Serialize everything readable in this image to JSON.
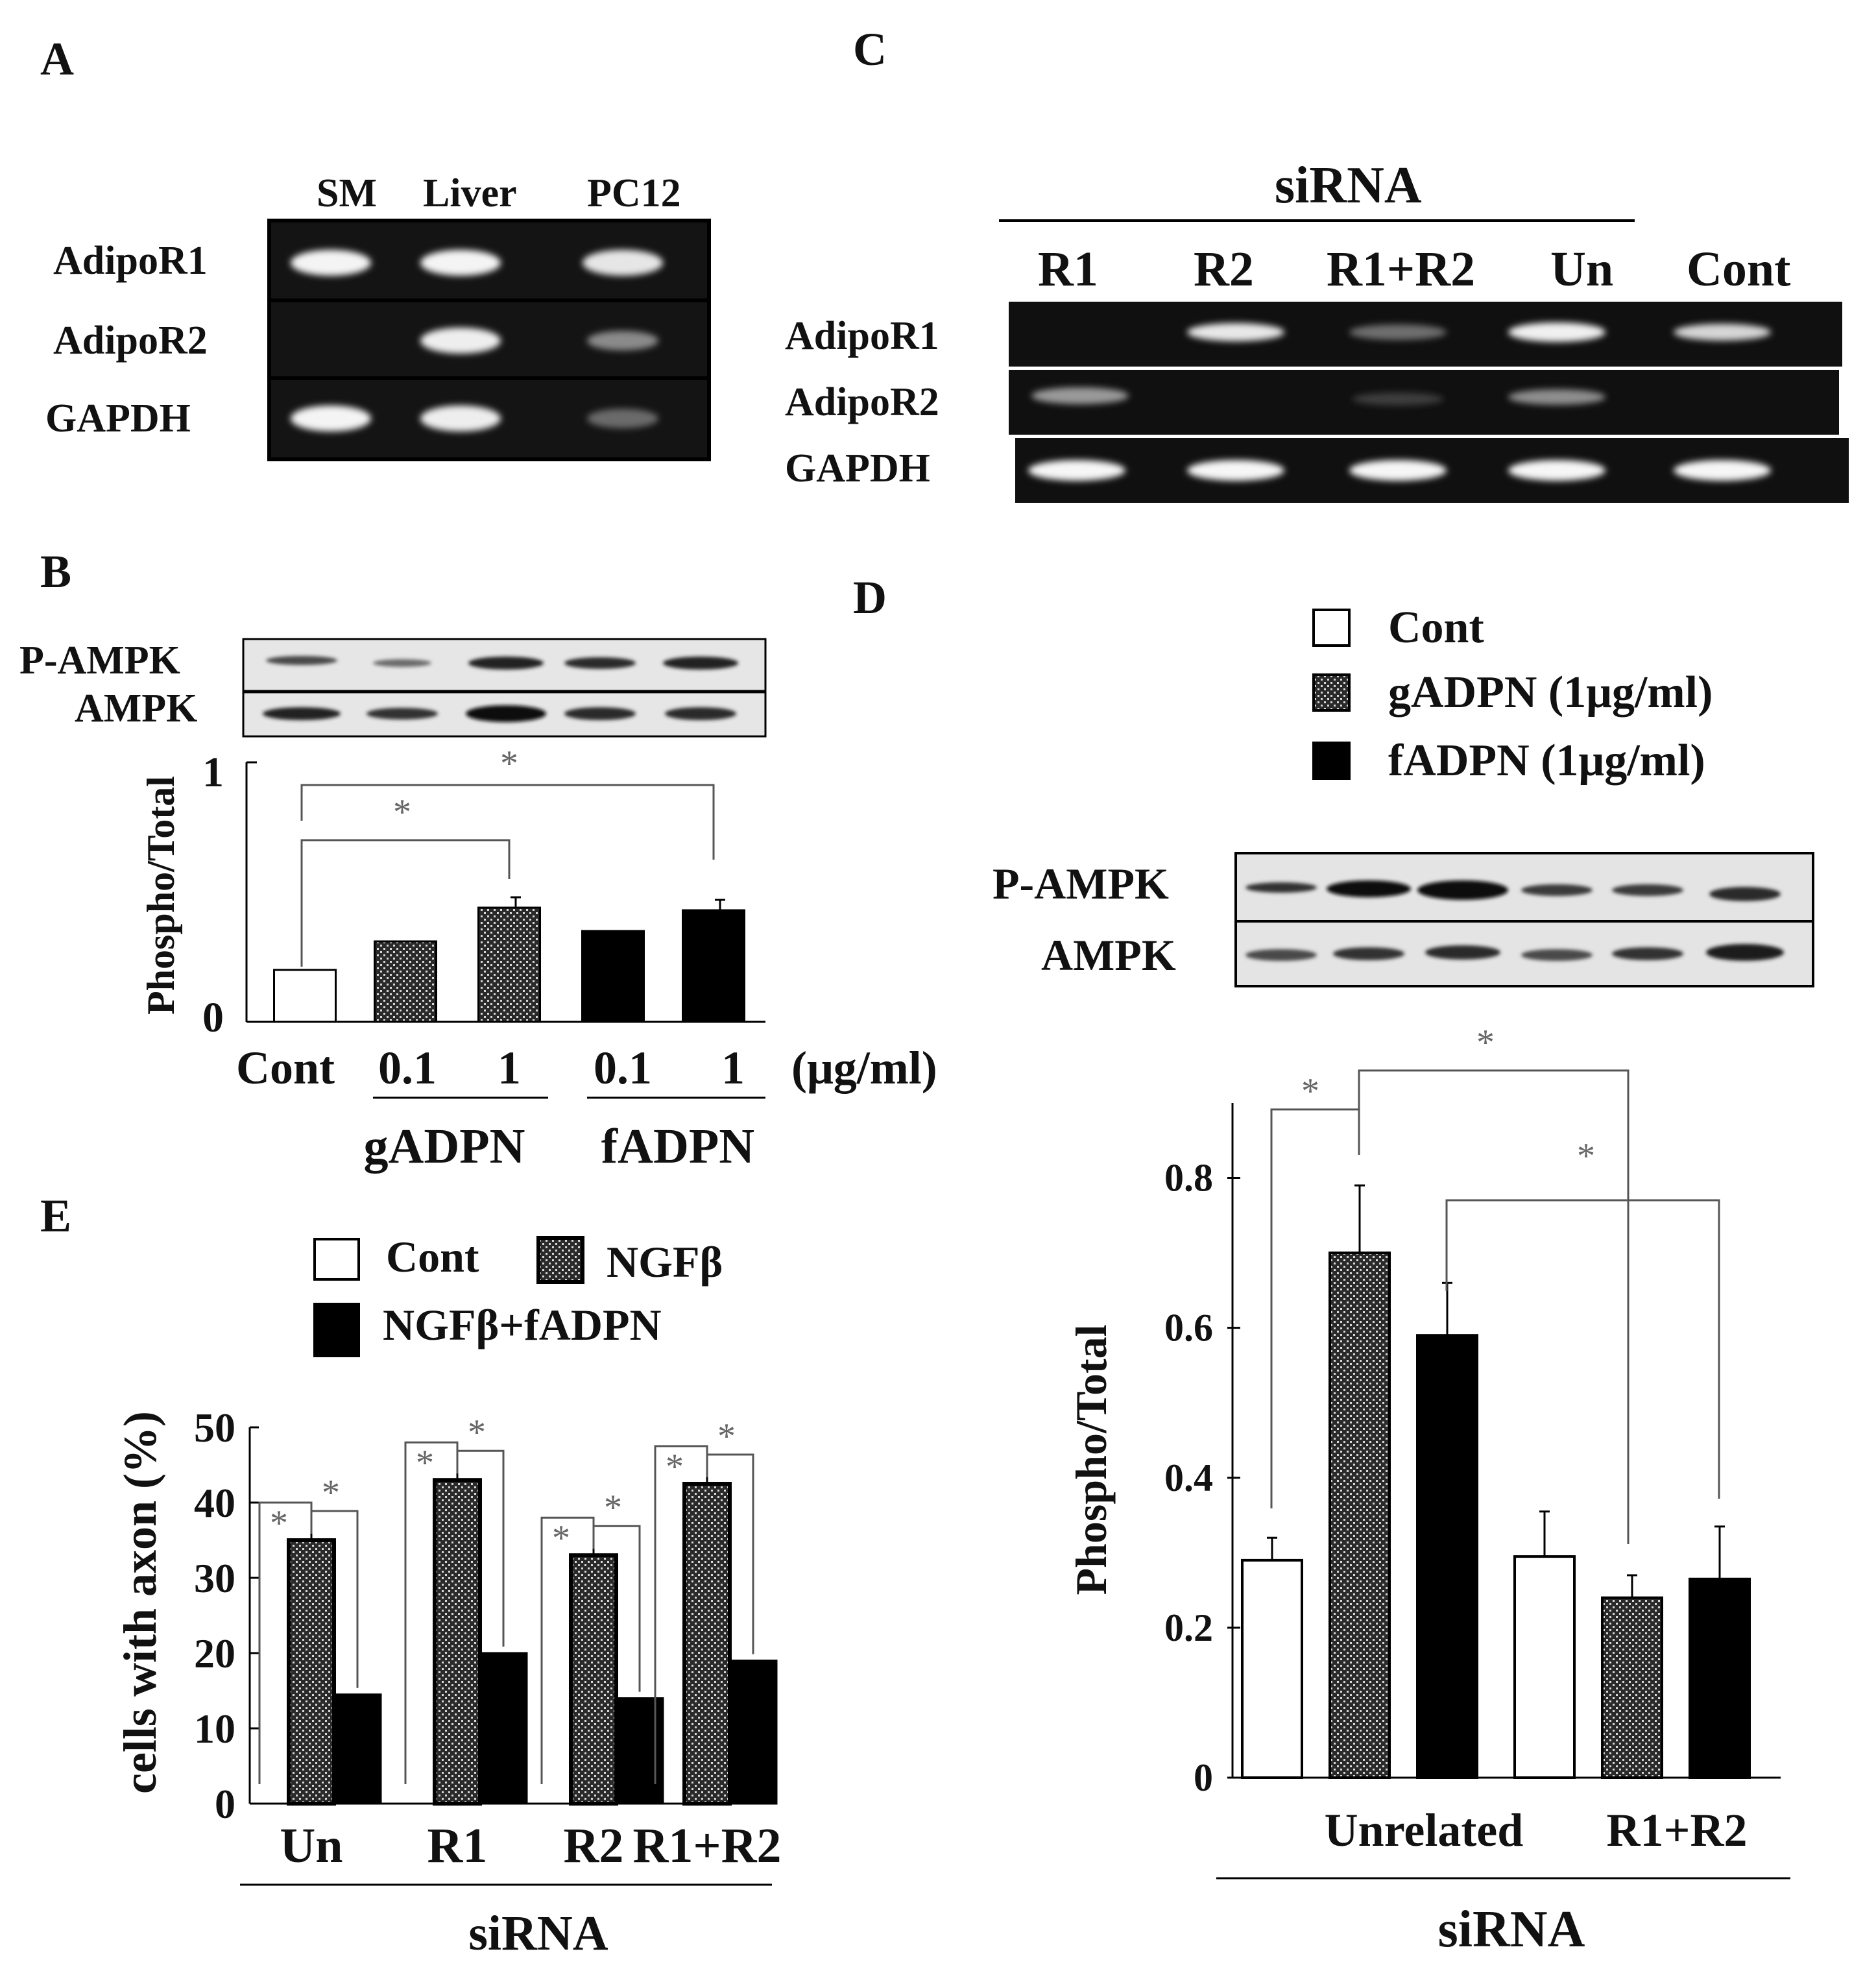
{
  "panels": {
    "A": {
      "letter": "A",
      "lanes": [
        "SM",
        "Liver",
        "PC12"
      ],
      "rows": [
        "AdipoR1",
        "AdipoR2",
        "GAPDH"
      ]
    },
    "B": {
      "letter": "B",
      "blot_rows": [
        "P-AMPK",
        "AMPK"
      ],
      "ylabel": "Phospho/Total",
      "yticks": [
        "0",
        "1"
      ],
      "categories": [
        "Cont",
        "0.1",
        "1",
        "0.1",
        "1"
      ],
      "unit": "(μg/ml)",
      "groups": [
        "gADPN",
        "fADPN"
      ]
    },
    "C": {
      "letter": "C",
      "header": "siRNA",
      "lanes": [
        "R1",
        "R2",
        "R1+R2",
        "Un",
        "Cont"
      ],
      "rows": [
        "AdipoR1",
        "AdipoR2",
        "GAPDH"
      ]
    },
    "D": {
      "letter": "D",
      "legend": [
        "Cont",
        "gADPN (1μg/ml)",
        "fADPN (1μg/ml)"
      ],
      "blot_rows": [
        "P-AMPK",
        "AMPK"
      ],
      "ylabel": "Phospho/Total",
      "yticks": [
        "0",
        "0.2",
        "0.4",
        "0.6",
        "0.8"
      ],
      "groups": [
        "Unrelated",
        "R1+R2"
      ],
      "xlabel": "siRNA"
    },
    "E": {
      "letter": "E",
      "legend": [
        "Cont",
        "NGFβ",
        "NGFβ+fADPN"
      ],
      "ylabel": "cells with axon (%)",
      "yticks": [
        "0",
        "10",
        "20",
        "30",
        "40",
        "50"
      ],
      "groups": [
        "Un",
        "R1",
        "R2",
        "R1+R2"
      ],
      "xlabel": "siRNA"
    }
  },
  "significance_mark": "*",
  "chart_data": [
    {
      "panel": "B",
      "type": "bar",
      "categories": [
        "Cont",
        "gADPN 0.1",
        "gADPN 1",
        "fADPN 0.1",
        "fADPN 1"
      ],
      "values": [
        0.2,
        0.31,
        0.44,
        0.35,
        0.43
      ],
      "errors": [
        0,
        0,
        0.04,
        0,
        0.04
      ],
      "fill": [
        "white",
        "hatched",
        "hatched",
        "black",
        "black"
      ],
      "ylabel": "Phospho/Total",
      "ylim": [
        0,
        1
      ]
    },
    {
      "panel": "D",
      "type": "bar",
      "categories": [
        "Unrelated",
        "R1+R2"
      ],
      "series": [
        {
          "name": "Cont",
          "values": [
            0.29,
            0.295
          ],
          "errors": [
            0.03,
            0.06
          ]
        },
        {
          "name": "gADPN (1μg/ml)",
          "values": [
            0.7,
            0.24
          ],
          "errors": [
            0.09,
            0.03
          ]
        },
        {
          "name": "fADPN (1μg/ml)",
          "values": [
            0.59,
            0.265
          ],
          "errors": [
            0.07,
            0.07
          ]
        }
      ],
      "ylabel": "Phospho/Total",
      "ylim": [
        0,
        0.9
      ]
    },
    {
      "panel": "E",
      "type": "bar",
      "categories": [
        "Un",
        "R1",
        "R2",
        "R1+R2"
      ],
      "series": [
        {
          "name": "Cont",
          "values": [
            0,
            0,
            0,
            0
          ]
        },
        {
          "name": "NGFβ",
          "values": [
            35,
            43,
            33,
            42.5
          ],
          "errors": [
            1.5,
            1.0,
            1.5,
            1.0
          ]
        },
        {
          "name": "NGFβ+fADPN",
          "values": [
            14.5,
            20,
            14,
            19
          ]
        }
      ],
      "ylabel": "cells with axon (%)",
      "ylim": [
        0,
        50
      ]
    }
  ]
}
